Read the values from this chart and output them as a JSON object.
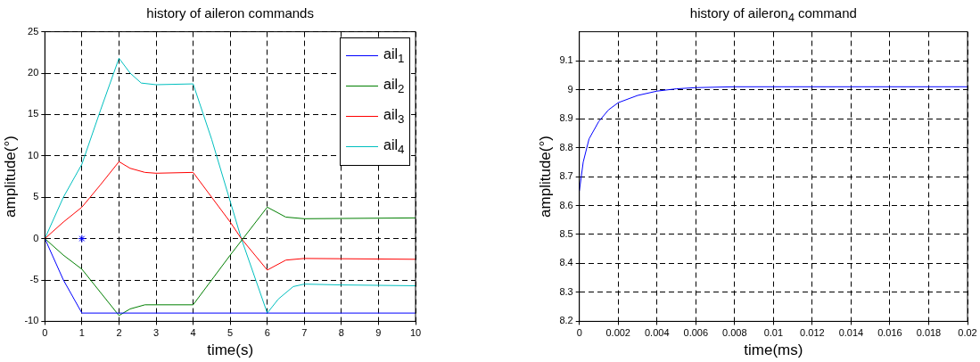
{
  "chart_data": [
    {
      "type": "line",
      "title": "history of aileron commands",
      "xlabel": "time(s)",
      "ylabel": "amplitude(°)",
      "xlim": [
        0,
        10
      ],
      "xticks": [
        0,
        1,
        2,
        3,
        4,
        5,
        6,
        7,
        8,
        9,
        10
      ],
      "ylim": [
        -10,
        25
      ],
      "yticks": [
        -10,
        -5,
        0,
        5,
        10,
        15,
        20,
        25
      ],
      "grid": true,
      "legend": "top right",
      "marker": "none",
      "series": [
        {
          "name": "ail$_{1}$",
          "color": "#0000ff",
          "x": [
            0,
            0.5,
            1,
            10
          ],
          "values": [
            0,
            -5,
            -9,
            -9
          ]
        },
        {
          "name": "ail$_{2}$",
          "color": "#007f00",
          "x": [
            0,
            0.5,
            1,
            1.5,
            2,
            2.3,
            2.7,
            4,
            5,
            6,
            6.5,
            7,
            10
          ],
          "values": [
            0,
            -2,
            -3.7,
            -6.5,
            -9.3,
            -8.5,
            -8,
            -8,
            -2,
            3.8,
            2.6,
            2.4,
            2.5
          ]
        },
        {
          "name": "ail$_{3}$",
          "color": "#ff0000",
          "x": [
            0,
            0.5,
            1,
            1.5,
            2,
            2.3,
            2.7,
            3,
            4,
            5,
            5.3,
            6,
            6.5,
            7,
            10
          ],
          "values": [
            0,
            2,
            3.8,
            6.5,
            9.3,
            8.5,
            8,
            7.9,
            8,
            2,
            0,
            -3.8,
            -2.6,
            -2.4,
            -2.5
          ]
        },
        {
          "name": "ail$_{4}$",
          "color": "#00bfbf",
          "x": [
            0,
            0.5,
            1,
            1.5,
            2,
            2.3,
            2.6,
            3,
            4,
            4.5,
            5,
            5.3,
            6,
            6.3,
            6.7,
            7,
            8,
            10
          ],
          "values": [
            0,
            5,
            9,
            15.5,
            21.8,
            20,
            18.8,
            18.6,
            18.7,
            12,
            4.5,
            0,
            -9,
            -7.3,
            -5.8,
            -5.5,
            -5.6,
            -5.7
          ]
        },
        {
          "type": "scatter",
          "marker": "cross",
          "color": "#0000ff",
          "x": [
            1
          ],
          "values": [
            0
          ]
        }
      ]
    },
    {
      "type": "line",
      "title": "history of aileron$_{4}$ command",
      "xlabel": "time(ms)",
      "ylabel": "amplitude(°)",
      "xlim": [
        0,
        0.02
      ],
      "xticks": [
        0,
        0.002,
        0.004,
        0.006,
        0.008,
        0.01,
        0.012,
        0.014,
        0.016,
        0.018,
        0.02
      ],
      "ylim": [
        8.2,
        9.2
      ],
      "yticks": [
        8.2,
        8.3,
        8.4,
        8.5,
        8.6,
        8.7,
        8.8,
        8.9,
        9,
        9.1
      ],
      "grid": true,
      "marker": "none",
      "series": [
        {
          "color": "#0000ff",
          "x": [
            0,
            0.0002,
            0.0005,
            0.001,
            0.0015,
            0.002,
            0.003,
            0.004,
            0.005,
            0.006,
            0.008,
            0.02
          ],
          "values": [
            8.65,
            8.75,
            8.83,
            8.89,
            8.93,
            8.955,
            8.98,
            8.995,
            9.003,
            9.007,
            9.01,
            9.01
          ]
        }
      ]
    }
  ]
}
